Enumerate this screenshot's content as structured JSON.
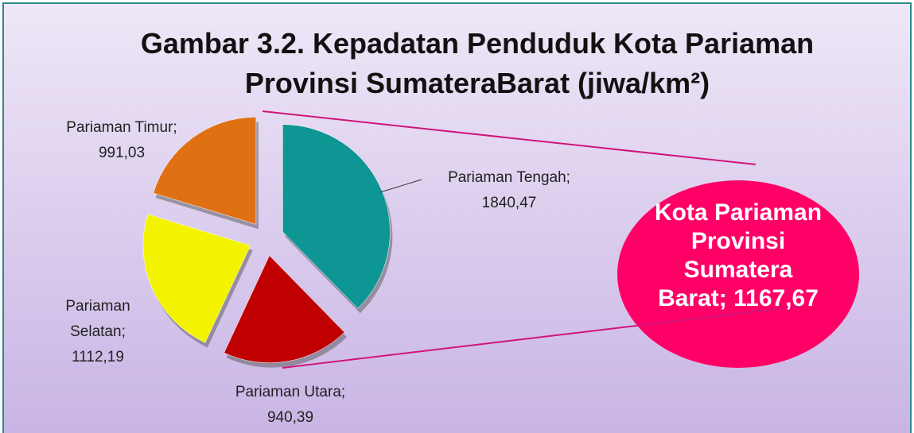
{
  "chart_data": {
    "type": "pie",
    "title": "Gambar 3.2. Kepadatan Penduduk Kota Pariaman Provinsi SumateraBarat (jiwa/km²)",
    "categories": [
      "Pariaman Tengah",
      "Pariaman Utara",
      "Pariaman Selatan",
      "Pariaman Timur"
    ],
    "values": [
      1840.47,
      940.39,
      1112.19,
      991.03
    ],
    "value_labels": [
      "1840,47",
      "940,39",
      "1112,19",
      "991,03"
    ],
    "colors": [
      "#0e9694",
      "#c00000",
      "#f4f400",
      "#e07014"
    ],
    "label_separator": ";",
    "callout": {
      "label": "Kota Pariaman Provinsi Sumatera Barat",
      "value": 1167.67,
      "value_label": "1167,67",
      "color": "#ff0066"
    }
  }
}
